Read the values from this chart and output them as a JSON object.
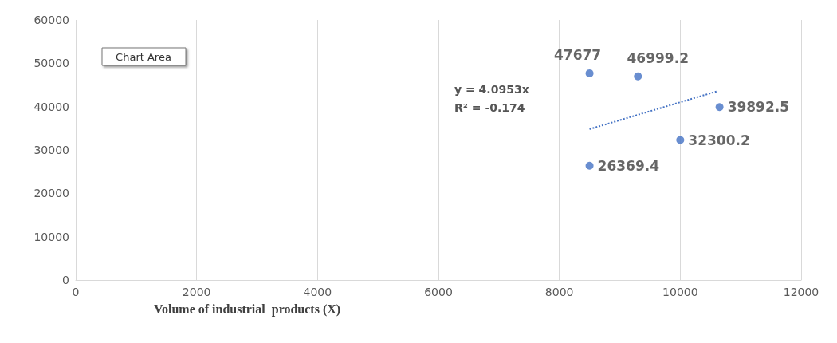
{
  "chart_data": {
    "type": "scatter",
    "xlabel": "Volume of industrial  products (X)",
    "xlim": [
      0,
      12000
    ],
    "xticks": [
      0,
      2000,
      4000,
      6000,
      8000,
      10000,
      12000
    ],
    "ylim": [
      0,
      60000
    ],
    "yticks": [
      0,
      10000,
      20000,
      30000,
      40000,
      50000,
      60000
    ],
    "grid": "x",
    "annotations": [
      "Chart Area",
      "y = 4.0953x",
      "R² = -0.174"
    ],
    "series": [
      {
        "color": "#4472c4",
        "marker": "circle",
        "x": [
          8500,
          9300,
          10000,
          10650,
          8500
        ],
        "values": [
          47677,
          46999.2,
          32300.2,
          39892.5,
          26369.4
        ],
        "value_labels": [
          "47677",
          "46999.2",
          "32300.2",
          "39892.5",
          "26369.4"
        ]
      },
      {
        "type": "line",
        "color": "#4472c4",
        "marker": "none",
        "line_style": "dotted",
        "x": [
          8500,
          10600
        ],
        "values": [
          34800,
          43500
        ]
      }
    ]
  }
}
